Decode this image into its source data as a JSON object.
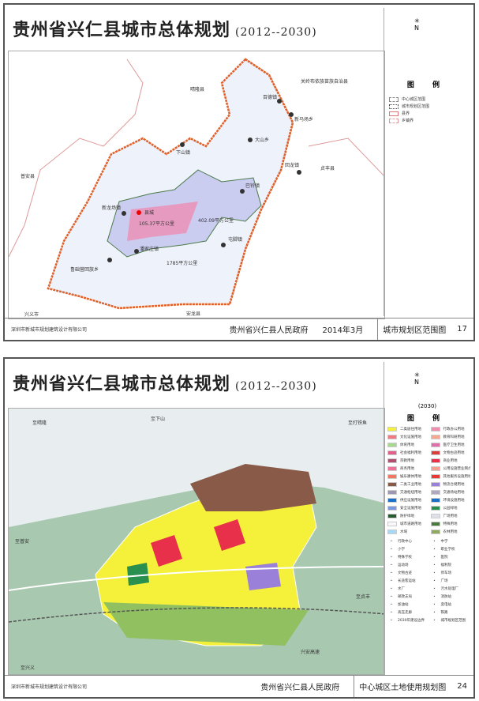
{
  "title": "贵州省兴仁县城市总体规划",
  "period": "(2012--2030)",
  "firm": "深圳市新城市规划建筑设计有限公司",
  "government": "贵州省兴仁县人民政府",
  "compass_label": "N",
  "sheet1": {
    "date": "2014年3月",
    "page_name": "城市规划区范围图",
    "page_no": "17",
    "legend_title": "图 例",
    "legend": [
      {
        "label": "中心城区范围",
        "color": "#888"
      },
      {
        "label": "城市规划区范围",
        "color": "#555"
      },
      {
        "label": "县界",
        "color": "#d77"
      },
      {
        "label": "乡镇界",
        "color": "#d99"
      }
    ],
    "labels": {
      "north": "晴隆县",
      "west": "普安县",
      "east": "贞丰县",
      "southwest": "兴义市",
      "south": "安龙县",
      "northeast": "关岭布依族苗族自治县",
      "county": "县城",
      "area_center": "105.37平方公里",
      "area_middle": "402.09平方公里",
      "area_total": "1785平方公里"
    },
    "towns": [
      "巴铃镇",
      "回龙镇",
      "大山乡",
      "新马场乡",
      "百德镇",
      "下山镇",
      "新龙场镇",
      "屯脚镇",
      "鲁础营回族乡",
      "潘家庄镇"
    ]
  },
  "sheet2": {
    "page_name": "中心城区土地使用规划图",
    "page_no": "24",
    "year": "(2030)",
    "legend_title": "图 例",
    "landuse": [
      {
        "label": "二类居住用地",
        "color": "#f5f03a"
      },
      {
        "label": "行政办公用地",
        "color": "#f08cb0"
      },
      {
        "label": "文化设施用地",
        "color": "#f07a80"
      },
      {
        "label": "教育科研用地",
        "color": "#f4a890"
      },
      {
        "label": "体育用地",
        "color": "#a8d890"
      },
      {
        "label": "医疗卫生用地",
        "color": "#e070a8"
      },
      {
        "label": "社会福利用地",
        "color": "#e0608a"
      },
      {
        "label": "文物古迹用地",
        "color": "#d84040"
      },
      {
        "label": "宗教用地",
        "color": "#b05070"
      },
      {
        "label": "商业用地",
        "color": "#e8304a"
      },
      {
        "label": "商务用地",
        "color": "#f07098"
      },
      {
        "label": "公用设施营业网点用地",
        "color": "#f4a090"
      },
      {
        "label": "娱乐康体用地",
        "color": "#f07860"
      },
      {
        "label": "其他服务设施用地",
        "color": "#e83838"
      },
      {
        "label": "二类工业用地",
        "color": "#8a5a48"
      },
      {
        "label": "物流仓储用地",
        "color": "#9a80d8"
      },
      {
        "label": "交通枢纽用地",
        "color": "#a098b0"
      },
      {
        "label": "交通场站用地",
        "color": "#b0a8c0"
      },
      {
        "label": "供应设施用地",
        "color": "#1a70c8"
      },
      {
        "label": "环境设施用地",
        "color": "#1a70c8"
      },
      {
        "label": "安全设施用地",
        "color": "#7a98e0"
      },
      {
        "label": "公园绿地",
        "color": "#2a9050"
      },
      {
        "label": "防护绿地",
        "color": "#2a5a30"
      },
      {
        "label": "广场用地",
        "color": "#e0e0ea"
      },
      {
        "label": "城市道路用地",
        "color": "#f8f8fc"
      },
      {
        "label": "特殊用地",
        "color": "#4a7a40"
      },
      {
        "label": "水域",
        "color": "#a8d8f8"
      },
      {
        "label": "农林用地",
        "color": "#90a860"
      }
    ],
    "symbols": [
      {
        "label": "行政中心",
        "icon": "dot"
      },
      {
        "label": "中学",
        "icon": "school"
      },
      {
        "label": "小学",
        "icon": "school"
      },
      {
        "label": "职业学校",
        "icon": "school"
      },
      {
        "label": "特殊学校",
        "icon": "school"
      },
      {
        "label": "医院",
        "icon": "cross"
      },
      {
        "label": "运动场",
        "icon": "sport"
      },
      {
        "label": "福利院",
        "icon": "welfare"
      },
      {
        "label": "文物古迹",
        "icon": "circle"
      },
      {
        "label": "停车场",
        "icon": "parking"
      },
      {
        "label": "长途客运站",
        "icon": "bus"
      },
      {
        "label": "广场",
        "icon": "square"
      },
      {
        "label": "水厂",
        "icon": "water"
      },
      {
        "label": "污水处理厂",
        "icon": "sewage"
      },
      {
        "label": "邮政支局",
        "icon": "post"
      },
      {
        "label": "消防站",
        "icon": "fire"
      },
      {
        "label": "加油站",
        "icon": "fuel"
      },
      {
        "label": "变电站",
        "icon": "power"
      },
      {
        "label": "高压走廊",
        "icon": "line"
      },
      {
        "label": "铁路",
        "icon": "rail"
      },
      {
        "label": "2030年建设边界",
        "icon": "boundary"
      },
      {
        "label": "城市规划区范围",
        "icon": "boundary2"
      }
    ],
    "labels": {
      "nw": "至晴隆",
      "n": "至下山",
      "ne": "至打铁鱼",
      "w": "至普安",
      "sw": "至兴义",
      "s": "兴安高速",
      "e": "至贞丰"
    }
  }
}
